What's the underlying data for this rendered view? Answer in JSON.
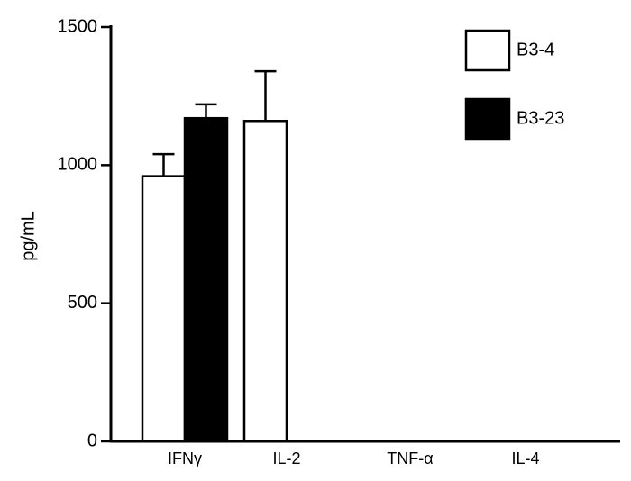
{
  "chart_data": {
    "type": "bar",
    "y_label": "pg/mL",
    "categories": [
      "IFNγ",
      "IL-2",
      "TNF-α",
      "IL-4"
    ],
    "series": [
      {
        "name": "B3-4",
        "color": "#ffffff",
        "values": [
          960,
          1160,
          null,
          null
        ],
        "errors": [
          80,
          180,
          null,
          null
        ]
      },
      {
        "name": "B3-23",
        "color": "#000000",
        "values": [
          1170,
          null,
          null,
          null
        ],
        "errors": [
          50,
          null,
          null,
          null
        ]
      }
    ],
    "ylim": [
      0,
      1500
    ],
    "yticks": [
      0,
      500,
      1000,
      1500
    ],
    "grid": false,
    "legend": "upper right"
  }
}
